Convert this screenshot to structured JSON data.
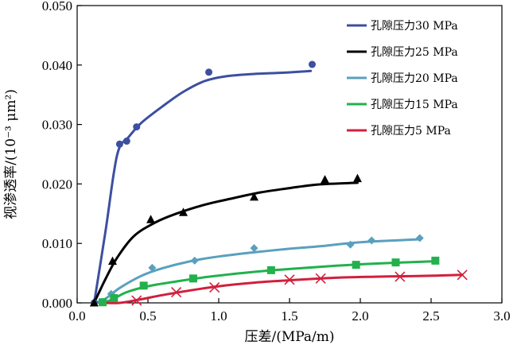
{
  "chart_data": {
    "type": "scatter",
    "title": "",
    "xlabel": "压差/(MPa/m)",
    "ylabel": "视渗透率/(10⁻³ μm²)",
    "xlim": [
      0,
      3
    ],
    "ylim": [
      0,
      0.05
    ],
    "x_ticks": [
      "0.0",
      "0.5",
      "1.0",
      "1.5",
      "2.0",
      "2.5",
      "3.0"
    ],
    "y_ticks": [
      "0.000",
      "0.010",
      "0.020",
      "0.030",
      "0.040",
      "0.050"
    ],
    "legend_position": "top-right",
    "grid": false,
    "series": [
      {
        "name": "孔隙压力30 MPa",
        "color": "#3c4fa0",
        "marker": "circle",
        "points": [
          [
            0.12,
            0.0
          ],
          [
            0.3,
            0.0267
          ],
          [
            0.35,
            0.0272
          ],
          [
            0.42,
            0.0296
          ],
          [
            0.93,
            0.0388
          ],
          [
            1.66,
            0.0401
          ]
        ],
        "fit": [
          [
            0.12,
            0.0
          ],
          [
            0.2,
            0.012
          ],
          [
            0.26,
            0.022
          ],
          [
            0.3,
            0.0262
          ],
          [
            0.36,
            0.0278
          ],
          [
            0.45,
            0.0302
          ],
          [
            0.6,
            0.033
          ],
          [
            0.75,
            0.0355
          ],
          [
            0.9,
            0.0373
          ],
          [
            1.05,
            0.0381
          ],
          [
            1.25,
            0.0385
          ],
          [
            1.45,
            0.0387
          ],
          [
            1.65,
            0.039
          ]
        ]
      },
      {
        "name": "孔隙压力25 MPa",
        "color": "#000000",
        "marker": "triangle",
        "points": [
          [
            0.12,
            0.0
          ],
          [
            0.25,
            0.007
          ],
          [
            0.52,
            0.014
          ],
          [
            0.75,
            0.0152
          ],
          [
            1.25,
            0.0178
          ],
          [
            1.75,
            0.0207
          ],
          [
            1.98,
            0.0209
          ]
        ],
        "fit": [
          [
            0.12,
            0.0
          ],
          [
            0.2,
            0.004
          ],
          [
            0.28,
            0.0075
          ],
          [
            0.4,
            0.0112
          ],
          [
            0.55,
            0.0135
          ],
          [
            0.7,
            0.015
          ],
          [
            0.9,
            0.0165
          ],
          [
            1.1,
            0.0176
          ],
          [
            1.3,
            0.0186
          ],
          [
            1.5,
            0.0193
          ],
          [
            1.7,
            0.0199
          ],
          [
            1.98,
            0.0202
          ]
        ]
      },
      {
        "name": "孔隙压力20 MPa",
        "color": "#5aa0be",
        "marker": "diamond",
        "points": [
          [
            0.18,
            0.0002
          ],
          [
            0.24,
            0.0015
          ],
          [
            0.53,
            0.0059
          ],
          [
            0.83,
            0.0071
          ],
          [
            1.25,
            0.0092
          ],
          [
            1.93,
            0.0098
          ],
          [
            2.08,
            0.0105
          ],
          [
            2.42,
            0.0109
          ]
        ],
        "fit": [
          [
            0.12,
            0.0
          ],
          [
            0.2,
            0.0007
          ],
          [
            0.3,
            0.0025
          ],
          [
            0.45,
            0.0045
          ],
          [
            0.6,
            0.0058
          ],
          [
            0.8,
            0.007
          ],
          [
            1.0,
            0.0078
          ],
          [
            1.25,
            0.0085
          ],
          [
            1.5,
            0.0091
          ],
          [
            1.75,
            0.0096
          ],
          [
            2.0,
            0.0102
          ],
          [
            2.42,
            0.0107
          ]
        ]
      },
      {
        "name": "孔隙压力15 MPa",
        "color": "#22b14c",
        "marker": "square",
        "points": [
          [
            0.18,
            0.0001
          ],
          [
            0.26,
            0.0008
          ],
          [
            0.47,
            0.0029
          ],
          [
            0.82,
            0.0041
          ],
          [
            1.37,
            0.0055
          ],
          [
            1.97,
            0.0064
          ],
          [
            2.25,
            0.0068
          ],
          [
            2.53,
            0.0071
          ]
        ],
        "fit": [
          [
            0.18,
            0.0
          ],
          [
            0.25,
            0.0006
          ],
          [
            0.35,
            0.0018
          ],
          [
            0.5,
            0.0028
          ],
          [
            0.7,
            0.0036
          ],
          [
            0.9,
            0.0043
          ],
          [
            1.2,
            0.0051
          ],
          [
            1.5,
            0.0057
          ],
          [
            1.8,
            0.0062
          ],
          [
            2.1,
            0.0066
          ],
          [
            2.53,
            0.007
          ]
        ]
      },
      {
        "name": "孔隙压力5 MPa",
        "color": "#d0203c",
        "marker": "x",
        "points": [
          [
            0.42,
            0.0004
          ],
          [
            0.7,
            0.0018
          ],
          [
            0.97,
            0.0026
          ],
          [
            1.5,
            0.0039
          ],
          [
            1.72,
            0.0041
          ],
          [
            2.28,
            0.0044
          ],
          [
            2.72,
            0.0047
          ]
        ],
        "fit": [
          [
            0.2,
            0.0
          ],
          [
            0.3,
            0.0
          ],
          [
            0.45,
            0.0006
          ],
          [
            0.6,
            0.0013
          ],
          [
            0.8,
            0.0021
          ],
          [
            1.0,
            0.0028
          ],
          [
            1.25,
            0.0034
          ],
          [
            1.5,
            0.0038
          ],
          [
            1.8,
            0.0042
          ],
          [
            2.1,
            0.0044
          ],
          [
            2.4,
            0.0045
          ],
          [
            2.72,
            0.0047
          ]
        ]
      }
    ]
  }
}
